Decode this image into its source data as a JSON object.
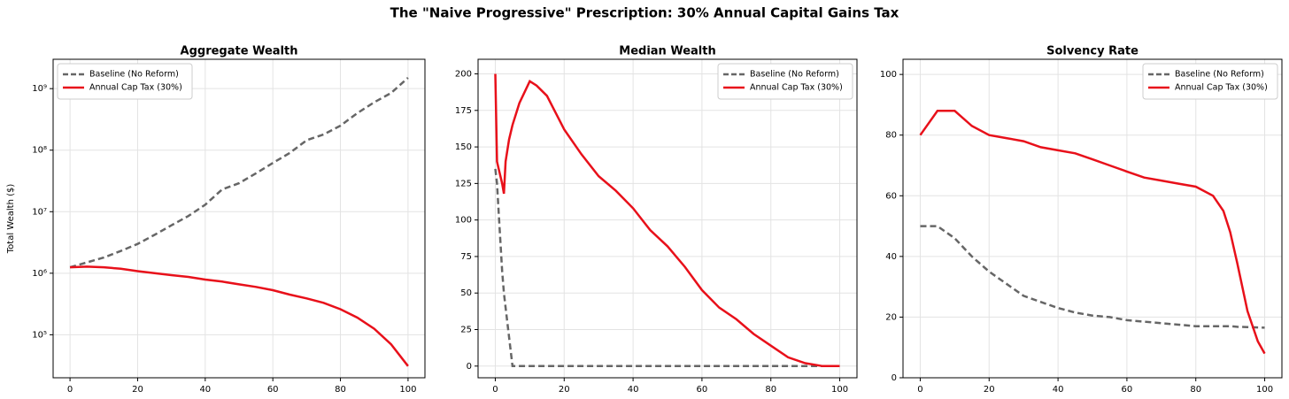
{
  "title": "The \"Naive Progressive\" Prescription: 30% Annual Capital Gains Tax",
  "chart_data": [
    {
      "type": "line",
      "title": "Aggregate Wealth",
      "ylabel": "Total Wealth ($)",
      "log_y": true,
      "grid": true,
      "legend": "upper left",
      "x": [
        0,
        5,
        10,
        15,
        20,
        25,
        30,
        35,
        40,
        45,
        50,
        55,
        60,
        65,
        70,
        75,
        80,
        85,
        90,
        95,
        100
      ],
      "series": [
        {
          "name": "Baseline (No Reform)",
          "color": "#666666",
          "linestyle": "dashed",
          "values": [
            1250000,
            1500000,
            1800000,
            2300000,
            3000000,
            4200000,
            6000000,
            8500000,
            13000000,
            23000000,
            29000000,
            42000000,
            62000000,
            90000000,
            145000000,
            180000000,
            250000000,
            400000000,
            600000000,
            850000000,
            1500000000
          ]
        },
        {
          "name": "Annual Cap Tax (30%)",
          "color": "#e8101a",
          "linestyle": "solid",
          "values": [
            1250000,
            1280000,
            1250000,
            1180000,
            1080000,
            1000000,
            930000,
            870000,
            790000,
            730000,
            660000,
            600000,
            530000,
            450000,
            390000,
            330000,
            260000,
            190000,
            125000,
            70000,
            31000
          ]
        }
      ],
      "xlim": [
        -5,
        105
      ],
      "xticks": [
        0,
        20,
        40,
        60,
        80,
        100
      ],
      "ylim": [
        20000,
        3000000000
      ],
      "yticks": [
        {
          "value": 100000,
          "label": "10⁵"
        },
        {
          "value": 1000000,
          "label": "10⁶"
        },
        {
          "value": 10000000,
          "label": "10⁷"
        },
        {
          "value": 100000000,
          "label": "10⁸"
        },
        {
          "value": 1000000000,
          "label": "10⁹"
        }
      ]
    },
    {
      "type": "line",
      "title": "Median Wealth",
      "grid": true,
      "legend": "upper right",
      "x": [
        0,
        0.5,
        1,
        2,
        2.5,
        3,
        4,
        5,
        7,
        10,
        12,
        15,
        20,
        25,
        30,
        35,
        40,
        45,
        50,
        55,
        60,
        65,
        70,
        75,
        80,
        85,
        90,
        95,
        100
      ],
      "series": [
        {
          "name": "Baseline (No Reform)",
          "color": "#666666",
          "linestyle": "dashed",
          "values": [
            135,
            125,
            105,
            65,
            50,
            40,
            20,
            0,
            0,
            0,
            0,
            0,
            0,
            0,
            0,
            0,
            0,
            0,
            0,
            0,
            0,
            0,
            0,
            0,
            0,
            0,
            0,
            0,
            0
          ]
        },
        {
          "name": "Annual Cap Tax (30%)",
          "color": "#e8101a",
          "linestyle": "solid",
          "values": [
            200,
            140,
            135,
            125,
            118,
            140,
            155,
            165,
            180,
            195,
            192,
            185,
            162,
            145,
            130,
            120,
            108,
            93,
            82,
            68,
            52,
            40,
            32,
            22,
            14,
            6,
            2,
            0,
            0
          ]
        }
      ],
      "xlim": [
        -5,
        105
      ],
      "xticks": [
        0,
        20,
        40,
        60,
        80,
        100
      ],
      "ylim": [
        -8,
        210
      ],
      "yticks": [
        0,
        25,
        50,
        75,
        100,
        125,
        150,
        175,
        200
      ]
    },
    {
      "type": "line",
      "title": "Solvency Rate",
      "grid": true,
      "legend": "upper right",
      "x": [
        0,
        5,
        10,
        15,
        20,
        25,
        30,
        35,
        40,
        45,
        50,
        55,
        60,
        65,
        70,
        75,
        80,
        85,
        88,
        90,
        92,
        95,
        98,
        100
      ],
      "series": [
        {
          "name": "Baseline (No Reform)",
          "color": "#666666",
          "linestyle": "dashed",
          "values": [
            50,
            50,
            46,
            40,
            35,
            31,
            27,
            25,
            23,
            21.5,
            20.5,
            20,
            19,
            18.5,
            18,
            17.5,
            17,
            17,
            17,
            17,
            16.8,
            16.7,
            16.6,
            16.5
          ]
        },
        {
          "name": "Annual Cap Tax (30%)",
          "color": "#e8101a",
          "linestyle": "solid",
          "values": [
            80,
            88,
            88,
            83,
            80,
            79,
            78,
            76,
            75,
            74,
            72,
            70,
            68,
            66,
            65,
            64,
            63,
            60,
            55,
            48,
            38,
            22,
            12,
            8
          ]
        }
      ],
      "xlim": [
        -5,
        105
      ],
      "xticks": [
        0,
        20,
        40,
        60,
        80,
        100
      ],
      "ylim": [
        0,
        105
      ],
      "yticks": [
        0,
        20,
        40,
        60,
        80,
        100
      ]
    }
  ]
}
